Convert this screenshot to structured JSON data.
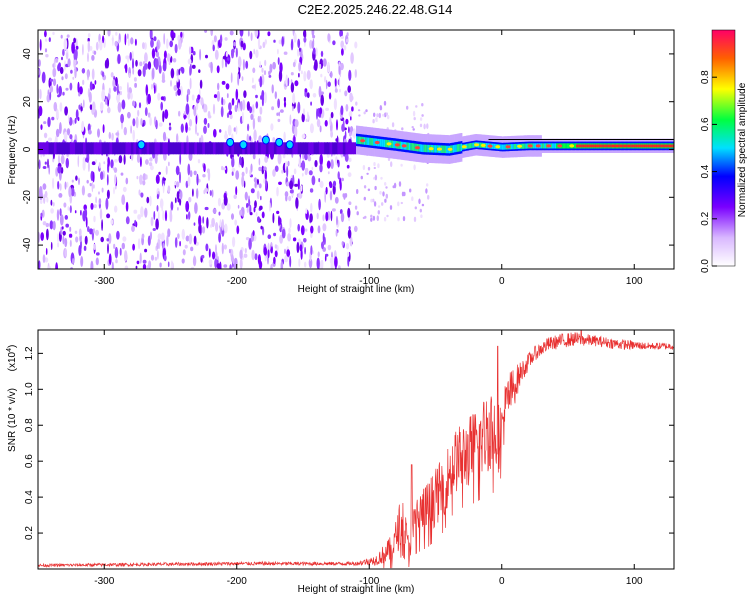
{
  "title": "C2E2.2025.246.22.48.G14",
  "chart_data": [
    {
      "type": "heatmap",
      "name": "spectrogram",
      "xlabel": "Height of straight line (km)",
      "ylabel": "Frequency (Hz)",
      "xlim": [
        -350,
        130
      ],
      "ylim": [
        -50,
        50
      ],
      "xticks": [
        -300,
        -200,
        -100,
        0,
        100
      ],
      "yticks": [
        -40,
        -20,
        0,
        20,
        40
      ],
      "noise_region_end_km": -110,
      "signal_band_center_hz": [
        [
          -110,
          4
        ],
        [
          -80,
          2
        ],
        [
          -60,
          0.5
        ],
        [
          -40,
          0
        ],
        [
          -20,
          2
        ],
        [
          0,
          1
        ],
        [
          20,
          1.5
        ],
        [
          60,
          1.5
        ],
        [
          130,
          1.5
        ]
      ],
      "colorbar": {
        "label": "Normalized spectral amplitude",
        "range": [
          0,
          1
        ],
        "ticks": [
          "0.0",
          "0.2",
          "0.4",
          "0.6",
          "0.8"
        ],
        "colors": [
          "#ffffff",
          "#d9b8ff",
          "#7a00ff",
          "#0000ff",
          "#00e0ff",
          "#00ff40",
          "#ffff00",
          "#ff6000",
          "#ff0066"
        ]
      }
    },
    {
      "type": "line",
      "name": "snr",
      "color": "#e83030",
      "xlabel": "Height of straight line (km)",
      "ylabel": "SNR (10 * v/v)",
      "scale_label": "(x10",
      "scale_exp": "4",
      "xlim": [
        -350,
        130
      ],
      "ylim": [
        0,
        1.33
      ],
      "xticks": [
        -300,
        -200,
        -100,
        0,
        100
      ],
      "yticks": [
        "0.2",
        "0.4",
        "0.6",
        "0.8",
        "1.0",
        "1.2"
      ],
      "envelope_x": [
        -350,
        -200,
        -110,
        -95,
        -82,
        -75,
        -70,
        -65,
        -55,
        -45,
        -35,
        -25,
        -15,
        -8,
        -3,
        5,
        15,
        25,
        35,
        45,
        55,
        70,
        90,
        110,
        130
      ],
      "envelope_y": [
        0.02,
        0.03,
        0.03,
        0.05,
        0.12,
        0.3,
        0.1,
        0.28,
        0.35,
        0.45,
        0.6,
        0.65,
        0.72,
        0.8,
        0.72,
        0.95,
        1.1,
        1.2,
        1.25,
        1.27,
        1.28,
        1.27,
        1.25,
        1.24,
        1.24
      ],
      "noise_amplitude": [
        0.008,
        0.01,
        0.01,
        0.03,
        0.08,
        0.15,
        0.06,
        0.13,
        0.15,
        0.17,
        0.18,
        0.2,
        0.22,
        0.25,
        0.2,
        0.15,
        0.06,
        0.04,
        0.04,
        0.04,
        0.04,
        0.03,
        0.03,
        0.02,
        0.02
      ],
      "spikes": [
        {
          "x": -68,
          "y": 0.58
        },
        {
          "x": -3,
          "y": 1.24
        },
        {
          "x": 60,
          "y": 1.33
        }
      ]
    }
  ]
}
